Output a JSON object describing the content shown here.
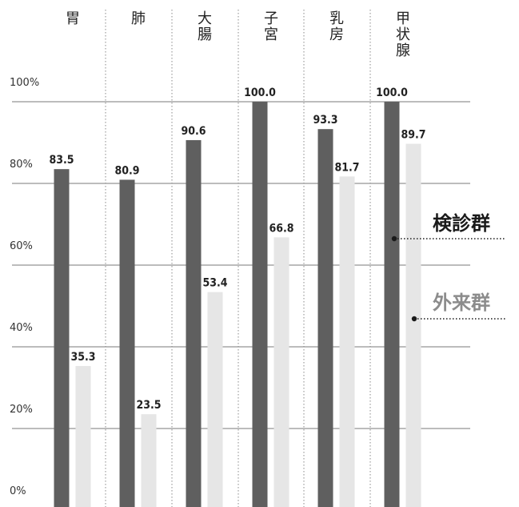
{
  "chart_data": {
    "type": "bar",
    "categories": [
      "胃",
      "肺",
      "大腸",
      "子宮",
      "乳房",
      "甲状腺"
    ],
    "series": [
      {
        "name": "検診群",
        "values": [
          83.5,
          80.9,
          90.6,
          100.0,
          93.3,
          100.0
        ],
        "color": "#5f5f5f"
      },
      {
        "name": "外来群",
        "values": [
          35.3,
          23.5,
          53.4,
          66.8,
          81.7,
          89.7
        ],
        "color": "#e6e6e6"
      }
    ],
    "value_labels": {
      "検診群": [
        "83.5",
        "80.9",
        "90.6",
        "100.0",
        "93.3",
        "100.0"
      ],
      "外来群": [
        "35.3",
        "23.5",
        "53.4",
        "66.8",
        "81.7",
        "89.7"
      ]
    },
    "yticks": [
      "0%",
      "20%",
      "40%",
      "60%",
      "80%",
      "100%"
    ],
    "ylim": [
      0,
      100
    ],
    "grid": true,
    "legend_placement": "right",
    "legend_colors": {
      "検診群": "#1a1a1a",
      "外来群": "#8c8c8c"
    }
  }
}
